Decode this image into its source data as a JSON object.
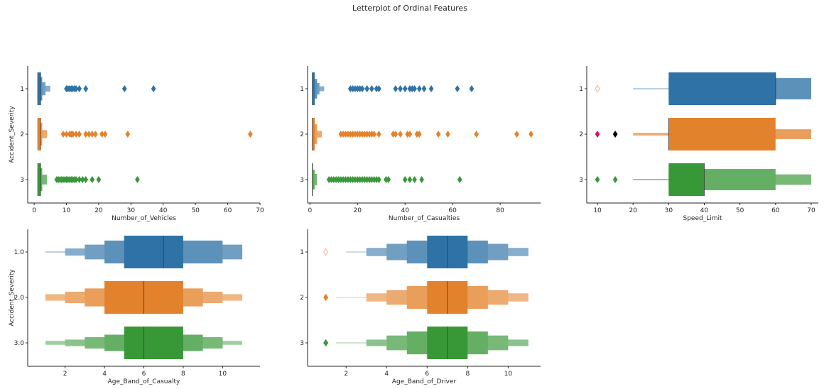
{
  "title": "Letterplot of Ordinal Features",
  "colors": {
    "blue": "#2e72a6",
    "orange": "#e3822c",
    "green": "#389838",
    "red": "#d62728",
    "black": "#000000",
    "axis": "#262626"
  },
  "chart_data": [
    {
      "type": "boxen",
      "xlabel": "Number_of_Vehicles",
      "ylabel": "Accident_Severity",
      "xlim": [
        -2,
        70
      ],
      "xticks": [
        0,
        10,
        20,
        30,
        40,
        50,
        60,
        70
      ],
      "categories": [
        "1",
        "2",
        "3"
      ],
      "series": [
        {
          "boxes": [
            [
              1,
              2,
              1.0
            ],
            [
              1,
              2.5,
              0.72
            ],
            [
              1,
              3.5,
              0.4
            ],
            [
              1,
              5,
              0.18
            ]
          ],
          "median": 2,
          "outliers": [
            10,
            10.5,
            11,
            11.5,
            12,
            12.5,
            13,
            14,
            16,
            28,
            37
          ]
        },
        {
          "boxes": [
            [
              1,
              2,
              1.0
            ],
            [
              1,
              2.5,
              0.7
            ],
            [
              1,
              4,
              0.25
            ]
          ],
          "median": 2,
          "outliers": [
            9,
            10,
            11,
            11.5,
            12,
            13,
            14,
            16,
            17,
            18,
            19,
            21,
            22,
            29,
            67
          ]
        },
        {
          "boxes": [
            [
              1,
              2,
              1.0
            ],
            [
              1,
              2.5,
              0.7
            ],
            [
              1,
              4,
              0.3
            ]
          ],
          "median": 2,
          "outliers": [
            7,
            7.5,
            8,
            8.5,
            9,
            9.5,
            10,
            10.5,
            11,
            11.5,
            12,
            12.5,
            13,
            14,
            15,
            16,
            18,
            20,
            32
          ]
        }
      ]
    },
    {
      "type": "boxen",
      "xlabel": "Number_of_Casualties",
      "ylabel": "",
      "xlim": [
        -1,
        97
      ],
      "xticks": [
        0,
        20,
        40,
        60,
        80
      ],
      "categories": [
        "1",
        "2",
        "3"
      ],
      "series": [
        {
          "boxes": [
            [
              1,
              2,
              1.0
            ],
            [
              1,
              3,
              0.6
            ],
            [
              1,
              4,
              0.35
            ],
            [
              1,
              6,
              0.15
            ]
          ],
          "median": 1,
          "outliers": [
            17,
            18,
            19,
            20,
            21,
            22,
            24,
            26,
            28,
            29,
            36,
            38,
            40,
            42,
            43,
            44,
            46,
            48,
            51,
            62,
            68
          ]
        },
        {
          "boxes": [
            [
              1,
              2,
              1.0
            ],
            [
              1,
              3,
              0.6
            ],
            [
              1,
              5,
              0.2
            ]
          ],
          "median": 1,
          "outliers": [
            13,
            14,
            15,
            16,
            17,
            18,
            19,
            20,
            21,
            22,
            23,
            24,
            25,
            26,
            27,
            29,
            35,
            36,
            38,
            41,
            42,
            45,
            46,
            54,
            58,
            70,
            87,
            93
          ]
        },
        {
          "boxes": [
            [
              1,
              1,
              1.0
            ],
            [
              1,
              2,
              0.6
            ],
            [
              1,
              3,
              0.35
            ]
          ],
          "median": 1,
          "outliers": [
            8,
            9,
            10,
            11,
            12,
            13,
            14,
            15,
            16,
            17,
            18,
            19,
            20,
            21,
            22,
            23,
            24,
            25,
            26,
            27,
            28,
            29,
            32,
            33,
            40,
            42,
            44,
            47,
            63
          ]
        }
      ]
    },
    {
      "type": "boxen",
      "xlabel": "Speed_Limit",
      "ylabel": "",
      "xlim": [
        7,
        72
      ],
      "xticks": [
        10,
        20,
        30,
        40,
        50,
        60,
        70
      ],
      "categories": [
        "1",
        "2",
        "3"
      ],
      "series": [
        {
          "boxes": [
            [
              30,
              60,
              1.0
            ],
            [
              30,
              70,
              0.65
            ],
            [
              20,
              70,
              0.02
            ]
          ],
          "median": 60,
          "outliers": [
            {
              "x": 10,
              "color": "#f4b39a",
              "hollow": true
            }
          ]
        },
        {
          "boxes": [
            [
              30,
              60,
              1.0
            ],
            [
              30,
              70,
              0.3
            ],
            [
              20,
              70,
              0.08
            ]
          ],
          "median": 30,
          "outliers": [
            {
              "x": 10,
              "color": "#d6164e"
            },
            {
              "x": 15,
              "color": "#000000"
            }
          ]
        },
        {
          "boxes": [
            [
              30,
              40,
              1.0
            ],
            [
              30,
              60,
              0.65
            ],
            [
              30,
              70,
              0.32
            ],
            [
              20,
              70,
              0.04
            ]
          ],
          "median": 40,
          "outliers": [
            {
              "x": 10,
              "color": "#389838"
            },
            {
              "x": 15,
              "color": "#389838"
            }
          ]
        }
      ]
    },
    {
      "type": "boxen",
      "xlabel": "Age_Band_of_Casualty",
      "ylabel": "Accident_Severity",
      "xlim": [
        0.1,
        11.9
      ],
      "xticks": [
        2,
        4,
        6,
        8,
        10
      ],
      "categories": [
        "1.0",
        "2.0",
        "3.0"
      ],
      "series": [
        {
          "boxes": [
            [
              5,
              8,
              1.0
            ],
            [
              4,
              10,
              0.7
            ],
            [
              3,
              11,
              0.45
            ],
            [
              2,
              11,
              0.22
            ],
            [
              1,
              11,
              0.03
            ]
          ],
          "median": 7,
          "outliers": []
        },
        {
          "boxes": [
            [
              4,
              8,
              1.0
            ],
            [
              3,
              9,
              0.55
            ],
            [
              2,
              10,
              0.35
            ],
            [
              1,
              11,
              0.2
            ]
          ],
          "median": 6,
          "outliers": []
        },
        {
          "boxes": [
            [
              5,
              8,
              1.0
            ],
            [
              4,
              9,
              0.5
            ],
            [
              3,
              10,
              0.35
            ],
            [
              2,
              10,
              0.2
            ],
            [
              1,
              11,
              0.12
            ]
          ],
          "median": 6,
          "outliers": []
        }
      ]
    },
    {
      "type": "boxen",
      "xlabel": "Age_Band_of_Driver",
      "ylabel": "",
      "xlim": [
        0.1,
        11.6
      ],
      "xticks": [
        2,
        4,
        6,
        8,
        10
      ],
      "categories": [
        "1",
        "2",
        "3"
      ],
      "series": [
        {
          "boxes": [
            [
              6,
              8,
              1.0
            ],
            [
              5,
              9,
              0.7
            ],
            [
              4,
              10,
              0.5
            ],
            [
              3,
              11,
              0.25
            ],
            [
              2,
              11,
              0.02
            ]
          ],
          "median": 7,
          "outliers": [
            {
              "x": 1,
              "color": "#f4b39a",
              "hollow": true
            }
          ]
        },
        {
          "boxes": [
            [
              6,
              8,
              1.0
            ],
            [
              5,
              9,
              0.7
            ],
            [
              4,
              10,
              0.45
            ],
            [
              3,
              11,
              0.25
            ],
            [
              1.5,
              11,
              0.02
            ]
          ],
          "median": 7,
          "outliers": [
            1,
            1,
            1
          ]
        },
        {
          "boxes": [
            [
              6,
              8,
              1.0
            ],
            [
              5,
              9,
              0.7
            ],
            [
              4,
              10,
              0.45
            ],
            [
              3,
              11,
              0.2
            ],
            [
              1.5,
              11,
              0.02
            ]
          ],
          "median": 7,
          "outliers": [
            1,
            1,
            1
          ]
        }
      ]
    }
  ]
}
